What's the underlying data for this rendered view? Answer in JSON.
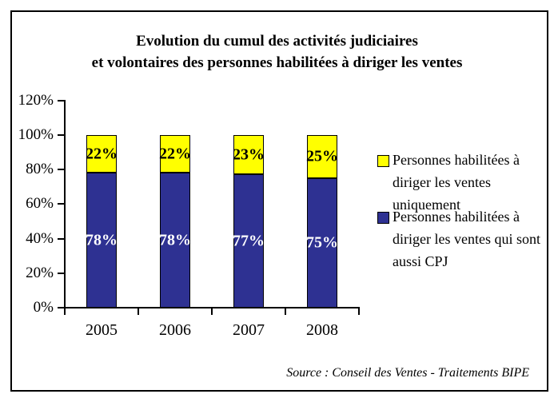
{
  "title": {
    "line1": "Evolution du cumul des activités judiciaires",
    "line2": "et volontaires des personnes habilitées à diriger les ventes"
  },
  "source": "Source : Conseil des Ventes - Traitements BIPE",
  "chart_data": {
    "type": "bar",
    "stacked": true,
    "title": "Evolution du cumul des activités judiciaires et volontaires des personnes habilitées à diriger les ventes",
    "categories": [
      "2005",
      "2006",
      "2007",
      "2008"
    ],
    "series": [
      {
        "name": "Personnes habilitées à diriger les ventes qui sont aussi CPJ",
        "color": "#2E3192",
        "label_color": "#ffffff",
        "values": [
          78,
          78,
          77,
          75
        ]
      },
      {
        "name": "Personnes habilitées à diriger les ventes uniquement",
        "color": "#FFFF00",
        "label_color": "#000000",
        "values": [
          22,
          22,
          23,
          25
        ]
      }
    ],
    "value_suffix": "%",
    "xlabel": "",
    "ylabel": "",
    "ylim": [
      0,
      120
    ],
    "y_ticks": [
      "0%",
      "20%",
      "40%",
      "60%",
      "80%",
      "100%",
      "120%"
    ],
    "grid": false,
    "legend_position": "right",
    "legend": [
      {
        "label": "Personnes habilitées à diriger les ventes uniquement",
        "color": "#FFFF00"
      },
      {
        "label": "Personnes habilitées à diriger les ventes qui sont aussi CPJ",
        "color": "#2E3192"
      }
    ]
  }
}
